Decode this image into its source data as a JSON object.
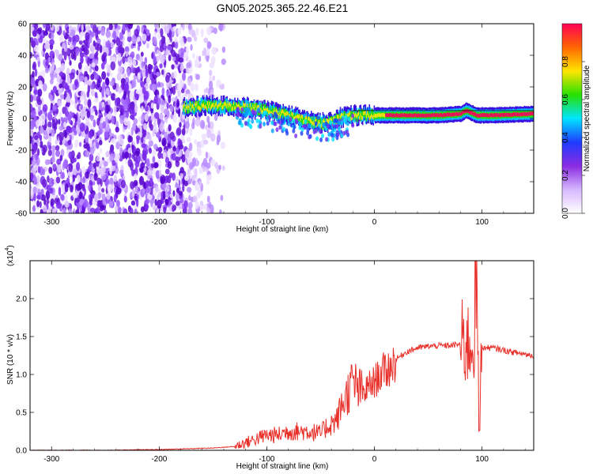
{
  "title": "GN05.2025.365.22.46.E21",
  "chart_data": [
    {
      "type": "heatmap",
      "title": "GN05.2025.365.22.46.E21",
      "xlabel": "Height of straight line (km)",
      "ylabel": "Frequency (Hz)",
      "xlim": [
        -320,
        148
      ],
      "ylim": [
        -60,
        60
      ],
      "x_ticks": [
        -300,
        -200,
        -100,
        0,
        100
      ],
      "y_ticks": [
        -60,
        -40,
        -20,
        0,
        20,
        40,
        60
      ],
      "colorbar": {
        "label": "Normalized spectral amplitude",
        "range": [
          0,
          1
        ],
        "ticks": [
          "0.0",
          "0.2",
          "0.4",
          "0.6",
          "0.8"
        ],
        "colors": [
          "#ffffff",
          "#d7b8ff",
          "#8a2be2",
          "#1e3cff",
          "#00e5ff",
          "#27e000",
          "#ffe600",
          "#ff6600",
          "#ff0055"
        ]
      },
      "ridge": {
        "description_points_x": [
          -175,
          -160,
          -140,
          -120,
          -100,
          -80,
          -60,
          -50,
          -40,
          -30,
          -20,
          -10,
          0,
          20,
          40,
          60,
          80,
          85,
          95,
          110,
          148
        ],
        "description_points_y": [
          7,
          8,
          8,
          7,
          5,
          2,
          -2,
          -3,
          -2,
          1,
          2,
          2,
          2,
          2,
          2,
          2,
          3,
          5,
          2,
          2,
          3
        ]
      },
      "noise_region_x": [
        -320,
        -140
      ]
    },
    {
      "type": "line",
      "xlabel": "Height of straight line (km)",
      "ylabel": "SNR (10 * v/v)",
      "y_multiplier": "(x10",
      "y_multiplier_exp": "4",
      "xlim": [
        -320,
        148
      ],
      "ylim": [
        0,
        2.5
      ],
      "x_ticks": [
        -300,
        -200,
        -100,
        0,
        100
      ],
      "y_ticks": [
        "0.0",
        "0.5",
        "1.0",
        "1.5",
        "2.0"
      ],
      "series": [
        {
          "color": "#e8302a",
          "x": [
            -320,
            -250,
            -200,
            -150,
            -130,
            -120,
            -110,
            -100,
            -90,
            -80,
            -70,
            -60,
            -50,
            -45,
            -40,
            -35,
            -30,
            -25,
            -20,
            -15,
            -10,
            -5,
            0,
            5,
            10,
            15,
            20,
            30,
            40,
            50,
            60,
            70,
            80,
            85,
            90,
            93,
            95,
            97,
            100,
            110,
            120,
            130,
            148
          ],
          "y": [
            0.0,
            0.0,
            0.01,
            0.03,
            0.05,
            0.1,
            0.15,
            0.2,
            0.2,
            0.25,
            0.25,
            0.25,
            0.22,
            0.3,
            0.35,
            0.4,
            0.6,
            0.75,
            0.9,
            0.8,
            0.75,
            0.85,
            0.9,
            1.0,
            1.05,
            1.1,
            1.2,
            1.3,
            1.35,
            1.37,
            1.38,
            1.38,
            1.4,
            1.4,
            1.4,
            1.5,
            1.9,
            0.5,
            1.35,
            1.35,
            1.32,
            1.29,
            1.25
          ]
        }
      ]
    }
  ]
}
